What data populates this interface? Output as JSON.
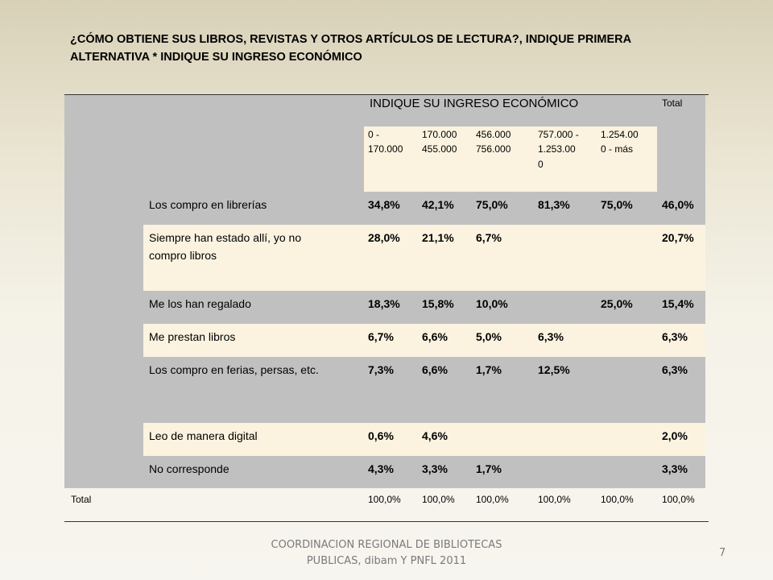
{
  "title": {
    "line1": "¿CÓMO OBTIENE SUS LIBROS, REVISTAS Y OTROS ARTÍCULOS DE LECTURA?, INDIQUE PRIMERA",
    "line2": "ALTERNATIVA * INDIQUE SU INGRESO ECONÓMICO"
  },
  "table": {
    "group_header": "INDIQUE SU INGRESO ECONÓMICO",
    "total_header": "Total",
    "columns": [
      {
        "line1": "0 -",
        "line2": "170.000",
        "line3": ""
      },
      {
        "line1": "170.000",
        "line2": "455.000",
        "line3": ""
      },
      {
        "line1": "456.000",
        "line2": "756.000",
        "line3": ""
      },
      {
        "line1": "757.000 -",
        "line2": "1.253.00",
        "line3": "0"
      },
      {
        "line1": "1.254.00",
        "line2": "0 - más",
        "line3": ""
      }
    ],
    "rows": [
      {
        "label": "Los compro en librerías",
        "label2": "",
        "values": [
          "34,8%",
          "42,1%",
          "75,0%",
          "81,3%",
          "75,0%"
        ],
        "total": "46,0%"
      },
      {
        "label": "Siempre han estado allí, yo no",
        "label2": "compro libros",
        "values": [
          "28,0%",
          "21,1%",
          "6,7%",
          "",
          ""
        ],
        "total": "20,7%"
      },
      {
        "label": "Me los han regalado",
        "label2": "",
        "values": [
          "18,3%",
          "15,8%",
          "10,0%",
          "",
          "25,0%"
        ],
        "total": "15,4%"
      },
      {
        "label": "Me prestan libros",
        "label2": "",
        "values": [
          "6,7%",
          "6,6%",
          "5,0%",
          "6,3%",
          ""
        ],
        "total": "6,3%"
      },
      {
        "label": "Los compro en ferias, persas, etc.",
        "label2": "",
        "values": [
          "7,3%",
          "6,6%",
          "1,7%",
          "12,5%",
          ""
        ],
        "total": "6,3%"
      },
      {
        "label": "Leo de manera digital",
        "label2": "",
        "values": [
          "0,6%",
          "4,6%",
          "",
          "",
          ""
        ],
        "total": "2,0%"
      },
      {
        "label": "No corresponde",
        "label2": "",
        "values": [
          "4,3%",
          "3,3%",
          "1,7%",
          "",
          ""
        ],
        "total": "3,3%"
      }
    ],
    "total_row": {
      "label": "Total",
      "values": [
        "100,0%",
        "100,0%",
        "100,0%",
        "100,0%",
        "100,0%"
      ],
      "total": "100,0%"
    }
  },
  "footer": {
    "line1": "COORDINACION REGIONAL DE BIBLIOTECAS",
    "line2": "PUBLICAS, dibam Y PNFL 2011",
    "page_number": "7"
  }
}
